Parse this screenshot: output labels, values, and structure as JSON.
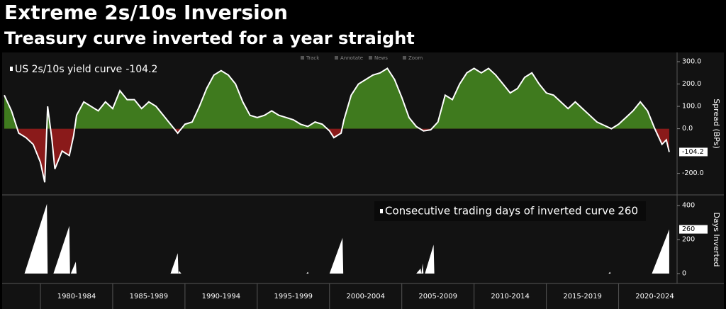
{
  "title": "Extreme 2s/10s Inversion",
  "subtitle": "Treasury curve inverted for a year straight",
  "toolbar": [
    "Track",
    "Annotate",
    "News",
    "Zoom"
  ],
  "chart_data": [
    {
      "type": "area",
      "axis_label": "Spread (BPs)",
      "xlim": [
        1977.45,
        2023.7
      ],
      "ylim": [
        -290,
        335
      ],
      "yticks": [
        {
          "value": 300,
          "label": "300.0"
        },
        {
          "value": 200,
          "label": "200.0"
        },
        {
          "value": 100,
          "label": "100.0"
        },
        {
          "value": 0,
          "label": "0.0"
        },
        {
          "value": -200,
          "label": "-200.0"
        }
      ],
      "x": [
        1977.5,
        1978.0,
        1978.5,
        1979.0,
        1979.5,
        1980.0,
        1980.3,
        1980.5,
        1980.8,
        1981.0,
        1981.5,
        1982.0,
        1982.3,
        1982.5,
        1983.0,
        1983.5,
        1984.0,
        1984.5,
        1985.0,
        1985.5,
        1986.0,
        1986.5,
        1987.0,
        1987.5,
        1988.0,
        1988.5,
        1989.0,
        1989.5,
        1990.0,
        1990.5,
        1991.0,
        1991.5,
        1992.0,
        1992.5,
        1993.0,
        1993.5,
        1994.0,
        1994.5,
        1995.0,
        1995.5,
        1996.0,
        1996.5,
        1997.0,
        1997.5,
        1998.0,
        1998.5,
        1999.0,
        1999.5,
        2000.0,
        2000.3,
        2000.8,
        2001.0,
        2001.5,
        2002.0,
        2002.5,
        2003.0,
        2003.5,
        2004.0,
        2004.5,
        2005.0,
        2005.5,
        2006.0,
        2006.5,
        2007.0,
        2007.5,
        2008.0,
        2008.5,
        2009.0,
        2009.5,
        2010.0,
        2010.5,
        2011.0,
        2011.5,
        2012.0,
        2012.5,
        2013.0,
        2013.5,
        2014.0,
        2014.5,
        2015.0,
        2015.5,
        2016.0,
        2016.5,
        2017.0,
        2017.5,
        2018.0,
        2018.5,
        2019.0,
        2019.5,
        2020.0,
        2020.5,
        2021.0,
        2021.5,
        2022.0,
        2022.5,
        2023.0,
        2023.3,
        2023.5
      ],
      "series": [
        {
          "name": "US 2s/10s yield curve",
          "line_color": "#ffffff",
          "positive_color": "#3f7a1e",
          "negative_color": "#8a1a1a",
          "values": [
            150,
            80,
            -20,
            -40,
            -70,
            -150,
            -240,
            100,
            -50,
            -180,
            -100,
            -120,
            -30,
            60,
            120,
            100,
            80,
            120,
            90,
            170,
            130,
            130,
            90,
            120,
            100,
            60,
            20,
            -20,
            20,
            30,
            100,
            180,
            240,
            260,
            240,
            200,
            120,
            60,
            50,
            60,
            80,
            60,
            50,
            40,
            20,
            10,
            30,
            20,
            -10,
            -40,
            -20,
            40,
            150,
            200,
            220,
            240,
            250,
            270,
            220,
            140,
            50,
            10,
            -10,
            -5,
            30,
            150,
            130,
            200,
            250,
            270,
            250,
            270,
            240,
            200,
            160,
            180,
            230,
            250,
            200,
            160,
            150,
            120,
            90,
            120,
            90,
            60,
            30,
            15,
            0,
            20,
            50,
            80,
            120,
            80,
            0,
            -70,
            -50,
            -104.2
          ]
        }
      ]
    },
    {
      "type": "area",
      "axis_label": "Days Inverted",
      "xlim": [
        1977.45,
        2023.7
      ],
      "ylim": [
        -50,
        450
      ],
      "yticks": [
        400,
        200,
        0
      ],
      "xticks": [
        {
          "value": 1982.5,
          "label": "1980-1984"
        },
        {
          "value": 1987.5,
          "label": "1985-1989"
        },
        {
          "value": 1992.5,
          "label": "1990-1994"
        },
        {
          "value": 1997.5,
          "label": "1995-1999"
        },
        {
          "value": 2002.5,
          "label": "2000-2004"
        },
        {
          "value": 2007.5,
          "label": "2005-2009"
        },
        {
          "value": 2012.5,
          "label": "2010-2014"
        },
        {
          "value": 2017.5,
          "label": "2015-2019"
        },
        {
          "value": 2022.5,
          "label": "2020-2024"
        }
      ],
      "x": [
        1977.45,
        1978.9,
        1980.45,
        1980.5,
        1980.9,
        1982.0,
        1982.05,
        1982.1,
        1982.45,
        1982.5,
        1989.0,
        1989.5,
        1989.55,
        1989.6,
        1989.75,
        1998.4,
        1998.5,
        1998.55,
        2000.0,
        2000.9,
        2000.95,
        2006.0,
        2006.3,
        2006.35,
        2006.45,
        2006.5,
        2006.6,
        2007.2,
        2007.25,
        2019.3,
        2019.4,
        2019.45,
        2022.3,
        2023.5
      ],
      "series": [
        {
          "name": "Consecutive trading days of inverted curve",
          "positive_color": "#ffffff",
          "values": [
            0,
            0,
            410,
            0,
            0,
            280,
            0,
            0,
            70,
            0,
            0,
            120,
            0,
            15,
            0,
            0,
            10,
            0,
            0,
            210,
            0,
            0,
            30,
            0,
            60,
            0,
            0,
            170,
            0,
            0,
            10,
            0,
            0,
            260
          ]
        }
      ]
    }
  ]
}
